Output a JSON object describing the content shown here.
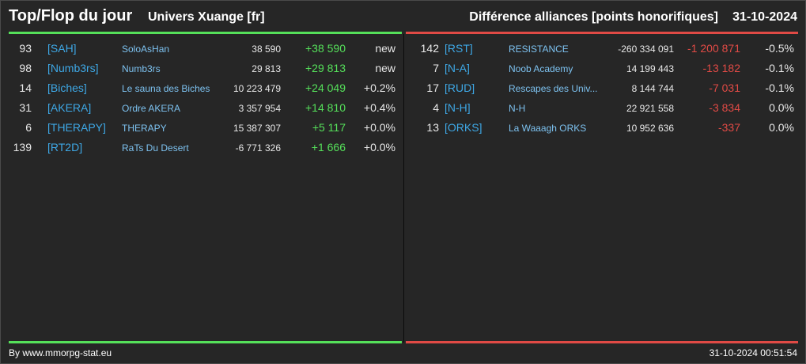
{
  "header": {
    "title": "Top/Flop du jour",
    "universe": "Univers Xuange [fr]",
    "report": "Différence alliances [points honorifiques]",
    "date": "31-10-2024"
  },
  "colors": {
    "positive": "#55e05a",
    "negative": "#e04a45",
    "tag": "#3ea8e6",
    "name": "#7dc2f0",
    "background": "#262626"
  },
  "top": [
    {
      "rank": "93",
      "tag": "[SAH]",
      "name": "SoloAsHan",
      "points": "38 590",
      "diff": "+38 590",
      "pct": "new"
    },
    {
      "rank": "98",
      "tag": "[Numb3rs]",
      "name": "Numb3rs",
      "points": "29 813",
      "diff": "+29 813",
      "pct": "new"
    },
    {
      "rank": "14",
      "tag": "[Biches]",
      "name": "Le sauna des Biches",
      "points": "10 223 479",
      "diff": "+24 049",
      "pct": "+0.2%"
    },
    {
      "rank": "31",
      "tag": "[AKERA]",
      "name": "Ordre AKERA",
      "points": "3 357 954",
      "diff": "+14 810",
      "pct": "+0.4%"
    },
    {
      "rank": "6",
      "tag": "[THERAPY]",
      "name": "THERAPY",
      "points": "15 387 307",
      "diff": "+5 117",
      "pct": "+0.0%"
    },
    {
      "rank": "139",
      "tag": "[RT2D]",
      "name": "RaTs Du Desert",
      "points": "-6 771 326",
      "diff": "+1 666",
      "pct": "+0.0%"
    }
  ],
  "flop": [
    {
      "rank": "142",
      "tag": "[RST]",
      "name": "RESISTANCE",
      "points": "-260 334 091",
      "diff": "-1 200 871",
      "pct": "-0.5%"
    },
    {
      "rank": "7",
      "tag": "[N-A]",
      "name": "Noob Academy",
      "points": "14 199 443",
      "diff": "-13 182",
      "pct": "-0.1%"
    },
    {
      "rank": "17",
      "tag": "[RUD]",
      "name": "Rescapes des Univ...",
      "points": "8 144 744",
      "diff": "-7 031",
      "pct": "-0.1%"
    },
    {
      "rank": "4",
      "tag": "[N-H]",
      "name": "N-H",
      "points": "22 921 558",
      "diff": "-3 834",
      "pct": "0.0%"
    },
    {
      "rank": "13",
      "tag": "[ORKS]",
      "name": "La Waaagh ORKS",
      "points": "10 952 636",
      "diff": "-337",
      "pct": "0.0%"
    }
  ],
  "footer": {
    "credit": "By www.mmorpg-stat.eu",
    "timestamp": "31-10-2024 00:51:54"
  }
}
